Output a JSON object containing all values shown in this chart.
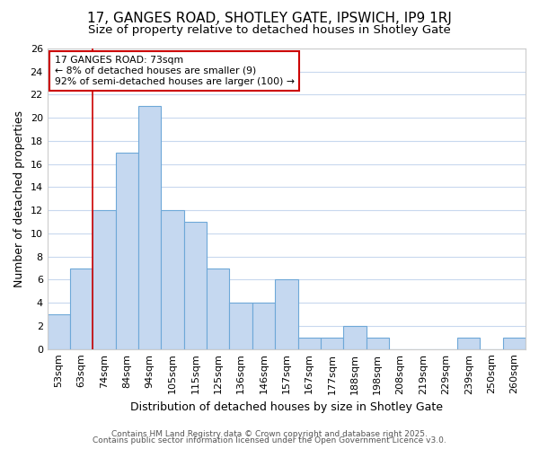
{
  "title1": "17, GANGES ROAD, SHOTLEY GATE, IPSWICH, IP9 1RJ",
  "title2": "Size of property relative to detached houses in Shotley Gate",
  "xlabel": "Distribution of detached houses by size in Shotley Gate",
  "ylabel": "Number of detached properties",
  "categories": [
    "53sqm",
    "63sqm",
    "74sqm",
    "84sqm",
    "94sqm",
    "105sqm",
    "115sqm",
    "125sqm",
    "136sqm",
    "146sqm",
    "157sqm",
    "167sqm",
    "177sqm",
    "188sqm",
    "198sqm",
    "208sqm",
    "219sqm",
    "229sqm",
    "239sqm",
    "250sqm",
    "260sqm"
  ],
  "values": [
    3,
    7,
    12,
    17,
    21,
    12,
    11,
    7,
    4,
    4,
    6,
    1,
    1,
    2,
    1,
    0,
    0,
    0,
    1,
    0,
    1
  ],
  "bar_color": "#c5d8f0",
  "bar_edge_color": "#6ea8d8",
  "vline_x": 2,
  "vline_color": "#cc0000",
  "ylim": [
    0,
    26
  ],
  "yticks": [
    0,
    2,
    4,
    6,
    8,
    10,
    12,
    14,
    16,
    18,
    20,
    22,
    24,
    26
  ],
  "annotation_line1": "17 GANGES ROAD: 73sqm",
  "annotation_line2": "← 8% of detached houses are smaller (9)",
  "annotation_line3": "92% of semi-detached houses are larger (100) →",
  "annotation_box_color": "#ffffff",
  "annotation_box_edge_color": "#cc0000",
  "footer1": "Contains HM Land Registry data © Crown copyright and database right 2025.",
  "footer2": "Contains public sector information licensed under the Open Government Licence v3.0.",
  "bg_color": "#ffffff",
  "plot_bg_color": "#ffffff",
  "grid_color": "#c8d8ee",
  "title1_fontsize": 11,
  "title2_fontsize": 9.5,
  "tick_fontsize": 8,
  "label_fontsize": 9,
  "footer_fontsize": 6.5
}
